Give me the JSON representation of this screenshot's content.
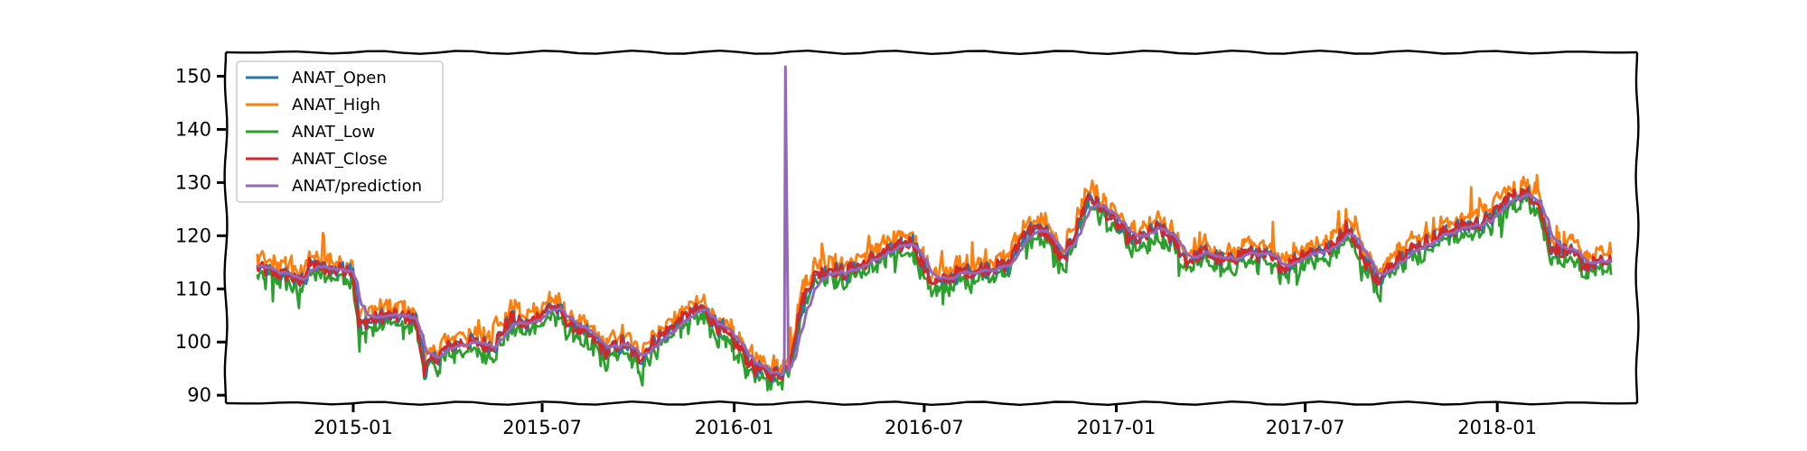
{
  "chart_data": {
    "type": "line",
    "title": "",
    "xlabel": "",
    "ylabel": "",
    "xlim": [
      "2014-09-01",
      "2018-05-15"
    ],
    "ylim": [
      88.5,
      154.5
    ],
    "grid": false,
    "legend_position": "top-left",
    "x_ticks": [
      {
        "date": "2015-01-01",
        "label": "2015-01"
      },
      {
        "date": "2015-07-01",
        "label": "2015-07"
      },
      {
        "date": "2016-01-01",
        "label": "2016-01"
      },
      {
        "date": "2016-07-01",
        "label": "2016-07"
      },
      {
        "date": "2017-01-01",
        "label": "2017-01"
      },
      {
        "date": "2017-07-01",
        "label": "2017-07"
      },
      {
        "date": "2018-01-01",
        "label": "2018-01"
      }
    ],
    "y_ticks": [
      90,
      100,
      110,
      120,
      130,
      140,
      150
    ],
    "series": [
      {
        "name": "ANAT_Open",
        "color": "#1f77b4"
      },
      {
        "name": "ANAT_High",
        "color": "#ff7f0e"
      },
      {
        "name": "ANAT_Low",
        "color": "#2ca02c"
      },
      {
        "name": "ANAT_Close",
        "color": "#d62728"
      },
      {
        "name": "ANAT/prediction",
        "color": "#9467bd"
      }
    ],
    "close_anchor_points": [
      [
        "2014-10-01",
        114
      ],
      [
        "2014-10-15",
        113
      ],
      [
        "2014-11-01",
        112.5
      ],
      [
        "2014-11-10",
        111
      ],
      [
        "2014-11-20",
        114.5
      ],
      [
        "2014-12-15",
        113.5
      ],
      [
        "2014-12-31",
        114
      ],
      [
        "2015-01-06",
        103
      ],
      [
        "2015-01-15",
        104
      ],
      [
        "2015-02-01",
        105
      ],
      [
        "2015-03-01",
        104.5
      ],
      [
        "2015-03-10",
        95
      ],
      [
        "2015-04-01",
        99
      ],
      [
        "2015-04-15",
        100
      ],
      [
        "2015-05-15",
        99.5
      ],
      [
        "2015-06-01",
        104.5
      ],
      [
        "2015-06-15",
        103
      ],
      [
        "2015-07-10",
        107
      ],
      [
        "2015-07-25",
        104
      ],
      [
        "2015-08-15",
        101
      ],
      [
        "2015-09-01",
        98
      ],
      [
        "2015-09-15",
        100
      ],
      [
        "2015-10-01",
        97
      ],
      [
        "2015-10-15",
        100
      ],
      [
        "2015-11-10",
        104
      ],
      [
        "2015-12-01",
        106.5
      ],
      [
        "2015-12-15",
        103
      ],
      [
        "2016-01-05",
        99
      ],
      [
        "2016-01-20",
        95
      ],
      [
        "2016-02-05",
        94
      ],
      [
        "2016-02-15",
        94
      ],
      [
        "2016-02-22",
        96
      ],
      [
        "2016-03-05",
        107
      ],
      [
        "2016-03-15",
        112
      ],
      [
        "2016-04-01",
        114
      ],
      [
        "2016-04-15",
        113
      ],
      [
        "2016-05-15",
        116
      ],
      [
        "2016-06-20",
        119
      ],
      [
        "2016-07-05",
        112
      ],
      [
        "2016-07-15",
        111
      ],
      [
        "2016-08-01",
        113
      ],
      [
        "2016-09-01",
        114
      ],
      [
        "2016-09-20",
        114.5
      ],
      [
        "2016-10-05",
        121
      ],
      [
        "2016-10-25",
        121
      ],
      [
        "2016-11-10",
        115
      ],
      [
        "2016-11-25",
        122
      ],
      [
        "2016-12-05",
        127.5
      ],
      [
        "2016-12-25",
        124
      ],
      [
        "2017-01-10",
        120
      ],
      [
        "2017-01-20",
        119
      ],
      [
        "2017-02-10",
        121.5
      ],
      [
        "2017-02-25",
        119
      ],
      [
        "2017-03-10",
        115
      ],
      [
        "2017-03-25",
        117
      ],
      [
        "2017-04-15",
        115
      ],
      [
        "2017-05-05",
        117
      ],
      [
        "2017-05-25",
        116
      ],
      [
        "2017-06-10",
        114
      ],
      [
        "2017-07-01",
        117
      ],
      [
        "2017-07-25",
        117.5
      ],
      [
        "2017-08-10",
        122
      ],
      [
        "2017-08-25",
        116
      ],
      [
        "2017-09-10",
        111
      ],
      [
        "2017-09-25",
        116
      ],
      [
        "2017-10-25",
        119
      ],
      [
        "2017-11-15",
        121
      ],
      [
        "2017-12-05",
        122
      ],
      [
        "2017-12-25",
        123
      ],
      [
        "2018-01-10",
        127
      ],
      [
        "2018-01-25",
        128
      ],
      [
        "2018-02-08",
        127
      ],
      [
        "2018-02-20",
        118
      ],
      [
        "2018-03-10",
        117
      ],
      [
        "2018-03-25",
        114.5
      ],
      [
        "2018-04-10",
        115
      ],
      [
        "2018-04-20",
        115
      ]
    ],
    "prediction_spike": {
      "date": "2016-02-19",
      "value": 151.8
    }
  }
}
